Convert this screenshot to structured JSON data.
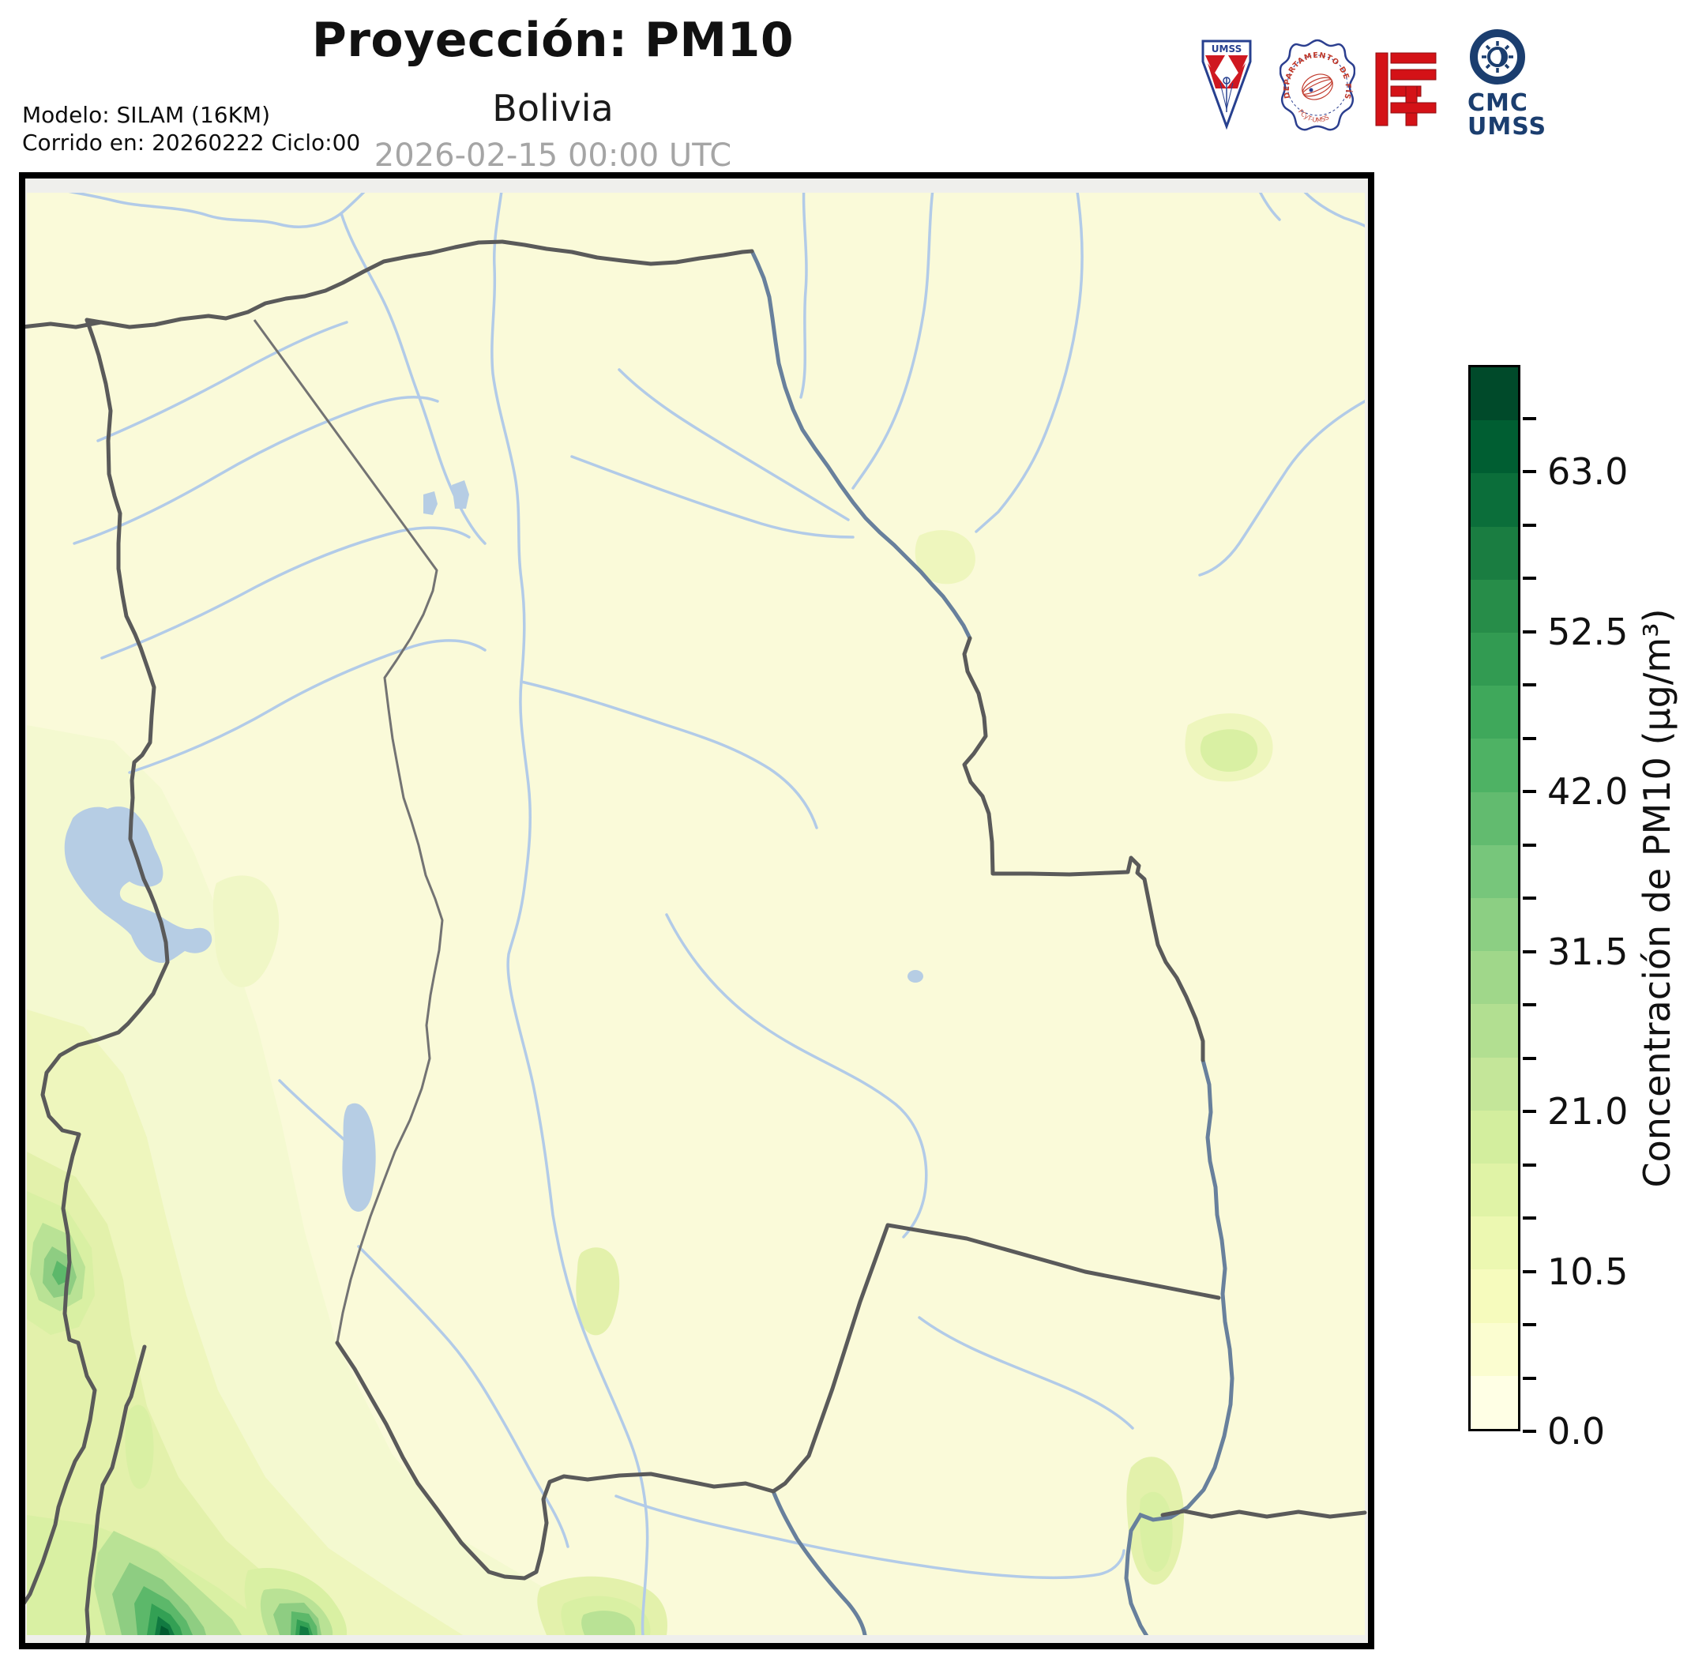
{
  "header": {
    "title": "Proyección: PM10",
    "subtitle": "Bolivia",
    "datetime": "2026-02-15 00:00 UTC",
    "model_line1": "Modelo: SILAM (16KM)",
    "model_line2": "Corrido en: 20260222 Ciclo:00"
  },
  "logos": {
    "umss_pennant_label": "UMSS",
    "fisica_seal_label": "DEPARTAMENTO DE FÍSICA",
    "fisica_seal_sub": "FCyT-UMSS",
    "cmc_line1": "CMC",
    "cmc_line2": "UMSS"
  },
  "colorbar": {
    "label": "Concentración de PM10 (µg/m³)",
    "tick_labels": [
      "63.0",
      "52.5",
      "42.0",
      "31.5",
      "21.0",
      "10.5",
      "0.0"
    ],
    "tick_values": [
      63.0,
      52.5,
      42.0,
      31.5,
      21.0,
      10.5,
      0.0
    ],
    "vmin": 0,
    "vmax": 70,
    "minor_step": 3.5,
    "colors_bottom_to_top": [
      "#ffffe5",
      "#fbfdd0",
      "#f6fbbd",
      "#ecf8b1",
      "#e0f3a6",
      "#d3ee9e",
      "#c4e699",
      "#b2df91",
      "#a0d78a",
      "#8ccf83",
      "#77c67b",
      "#62bb6f",
      "#4eb264",
      "#3fa85b",
      "#329b52",
      "#278d49",
      "#1a7d41",
      "#0b6e3a",
      "#005e32",
      "#004a2a"
    ]
  },
  "map": {
    "background": "#fafad9",
    "margin": "#efefec",
    "river_color": "#b2cbe8",
    "slate_river_color": "#68809c",
    "country_border_color": "#5a5a5a",
    "dept_border_color": "#737373",
    "lake_color": "#b6cde4"
  },
  "chart_data": {
    "type": "heatmap",
    "title": "Proyección: PM10",
    "subtitle": "Bolivia",
    "timestamp": "2026-02-15 00:00 UTC",
    "model": "SILAM (16KM)",
    "run": "20260222 Ciclo:00",
    "colorbar_label": "Concentración de PM10 (µg/m³)",
    "colorbar_ticks": [
      63.0,
      52.5,
      42.0,
      31.5,
      21.0,
      10.5,
      0.0
    ],
    "value_range": [
      0,
      70
    ],
    "n_levels": 20,
    "colormap": "YlGn",
    "summary": "PM10 surface concentration over Bolivia; mostly < 10.5 µg/m³ across the lowlands, elevated bands of 10–40 µg/m³ along the western Andes and the south-west, with local maxima above 55 µg/m³ near the south-western (Chile/Argentina) border and small patches in the south-center and south-east."
  }
}
